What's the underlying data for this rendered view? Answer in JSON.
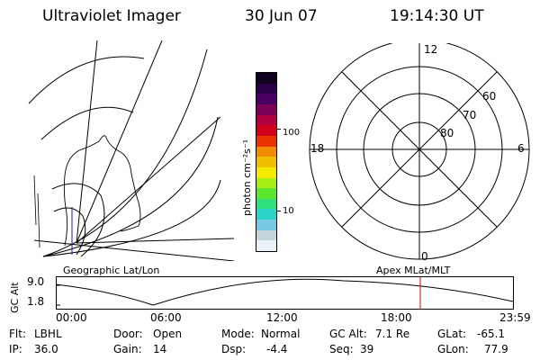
{
  "header": {
    "title": "Ultraviolet Imager",
    "date": "30 Jun 07",
    "time": "19:14:30 UT"
  },
  "colorbar": {
    "label": "photon cm⁻²s⁻¹",
    "tick_100": "100",
    "tick_10": "10",
    "colors": [
      "#e8f2f7",
      "#c2d4dc",
      "#78c8e6",
      "#2ad4c8",
      "#30e07a",
      "#5ce62e",
      "#a8ee14",
      "#f4ec00",
      "#f0c000",
      "#f08c00",
      "#e83400",
      "#d00018",
      "#b00040",
      "#7a0058",
      "#4a0060",
      "#2a0048",
      "#100020"
    ]
  },
  "polar": {
    "labels": {
      "top": "12",
      "left": "18",
      "right": "6",
      "bottom": "0"
    },
    "lat_labels": [
      "60",
      "70",
      "80"
    ]
  },
  "altitude_panel": {
    "left_title": "Geographic Lat/Lon",
    "right_title": "Apex MLat/MLT",
    "axis_label": "GC Alt",
    "y_ticks": [
      "9.0",
      "1.8"
    ],
    "x_ticks": [
      "00:00",
      "06:00",
      "12:00",
      "18:00",
      "23:59"
    ],
    "current_time_color": "#e00000"
  },
  "status": {
    "flt_label": "Flt:",
    "flt_value": "LBHL",
    "ip_label": "IP:",
    "ip_value": "36.0",
    "door_label": "Door:",
    "door_value": "Open",
    "gain_label": "Gain:",
    "gain_value": "14",
    "mode_label": "Mode:",
    "mode_value": "Normal",
    "dsp_label": "Dsp:",
    "dsp_value": "-4.4",
    "gcalt_label": "GC Alt:",
    "gcalt_value": "7.1 Re",
    "seq_label": "Seq:",
    "seq_value": "39",
    "glat_label": "GLat:",
    "glat_value": "-65.1",
    "glon_label": "GLon:",
    "glon_value": "77.9"
  }
}
